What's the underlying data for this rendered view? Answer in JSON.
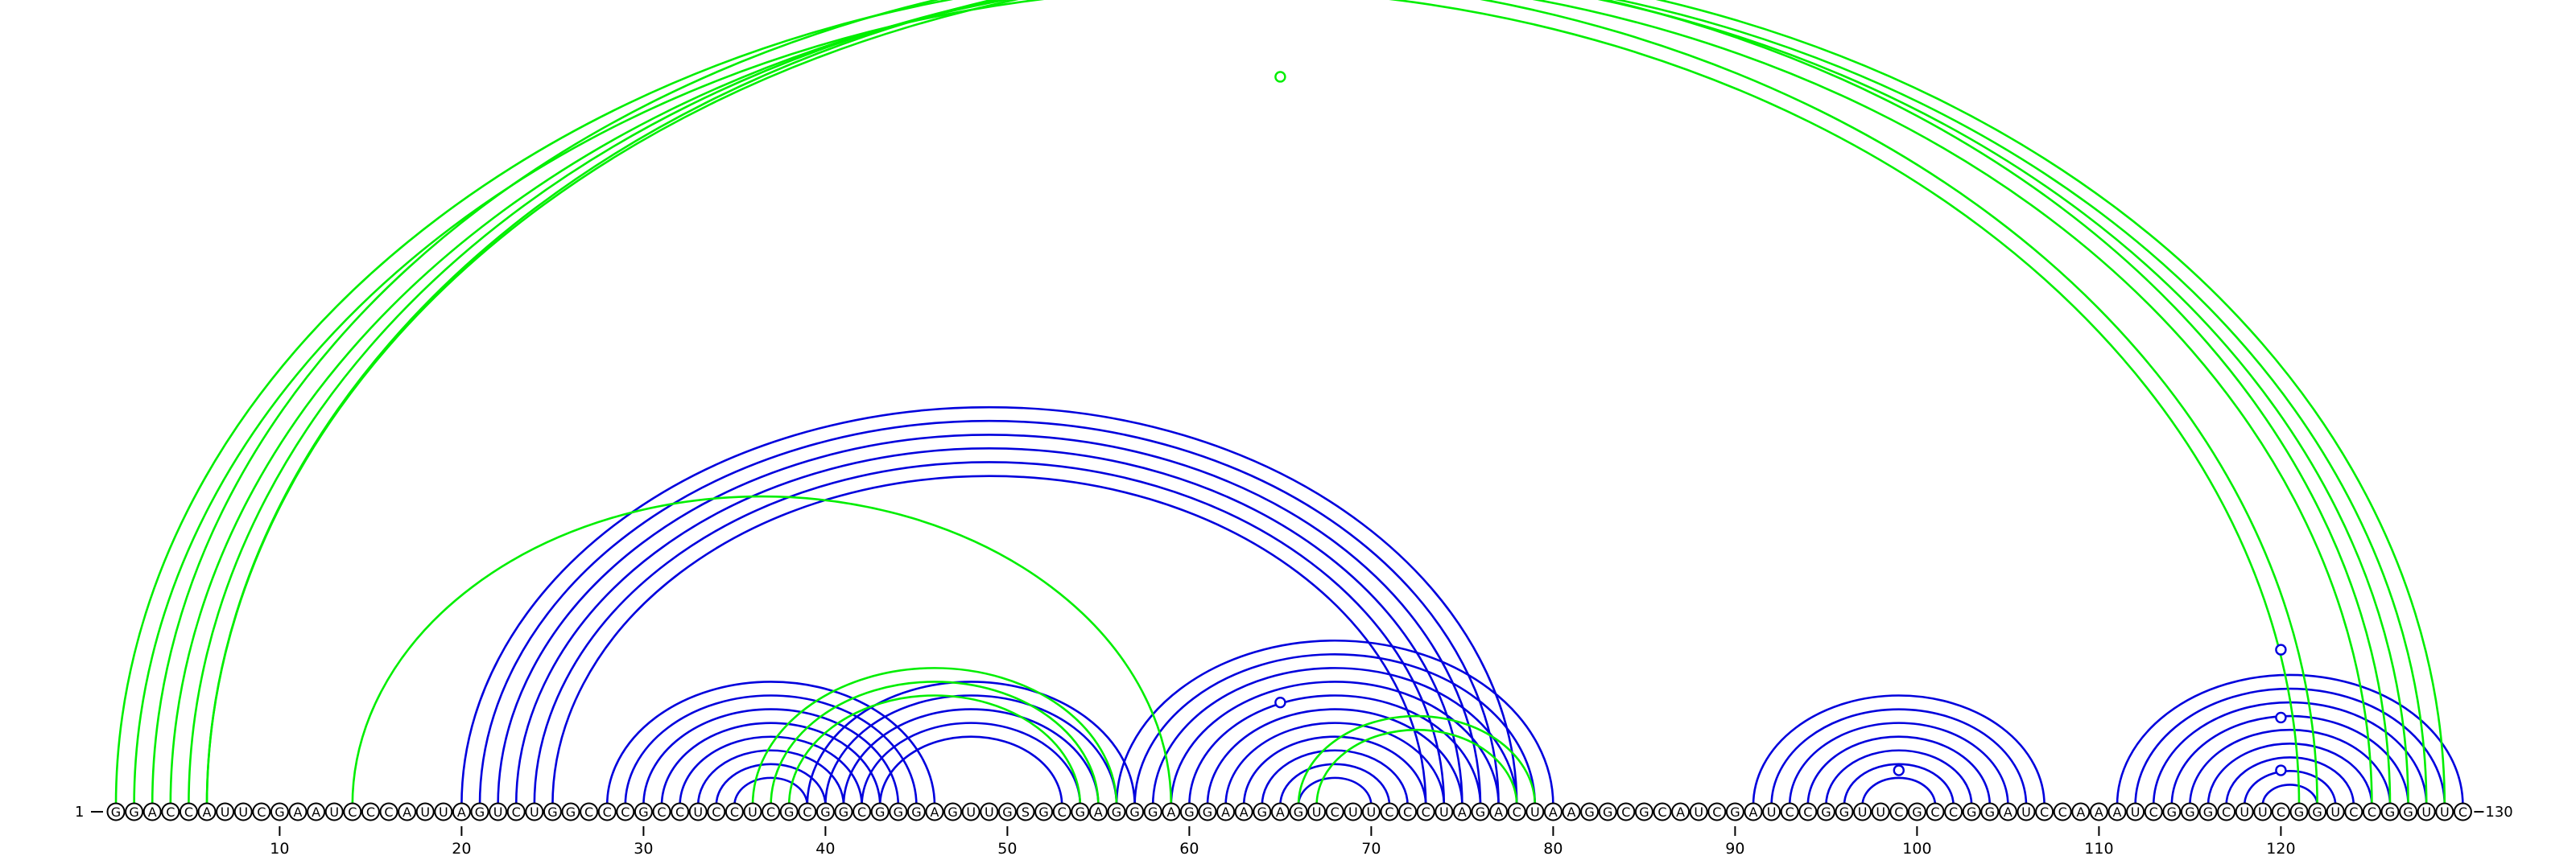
{
  "diagram": {
    "type": "rna-arc-diagram",
    "sequence": "GGACCAUUCGAAUCCCAUUAGUCUGGCCCGCCUCCUCGCGGCGGGAGUUGSGCGAGGGAGGAAGAGUCUUCCCUAGACUAAGGCGCAUCGAUCCGGUUCGCCGGAUCCAAAUCGGGCUUCGGUCCGGUUC",
    "start_label": "1",
    "end_label": "130",
    "tick_positions": [
      10,
      20,
      30,
      40,
      50,
      60,
      70,
      80,
      90,
      100,
      110,
      120
    ],
    "tick_labels": [
      "10",
      "20",
      "30",
      "40",
      "50",
      "60",
      "70",
      "80",
      "90",
      "100",
      "110",
      "120"
    ],
    "colors": {
      "top_pairs": "#00ee00",
      "bottom_pairs": "#0000dd"
    },
    "green_pairs": [
      [
        1,
        122
      ],
      [
        2,
        121
      ],
      [
        3,
        126
      ],
      [
        4,
        125
      ],
      [
        5,
        127
      ],
      [
        6,
        128
      ],
      [
        6,
        129
      ],
      [
        14,
        59
      ],
      [
        36,
        56
      ],
      [
        37,
        55
      ],
      [
        38,
        54
      ],
      [
        66,
        79
      ],
      [
        67,
        78
      ]
    ],
    "blue_pairs": [
      [
        20,
        78
      ],
      [
        21,
        77
      ],
      [
        22,
        76
      ],
      [
        23,
        75
      ],
      [
        24,
        74
      ],
      [
        25,
        73
      ],
      [
        28,
        46
      ],
      [
        29,
        45
      ],
      [
        30,
        44
      ],
      [
        31,
        43
      ],
      [
        32,
        42
      ],
      [
        33,
        41
      ],
      [
        34,
        40
      ],
      [
        35,
        39
      ],
      [
        39,
        57
      ],
      [
        40,
        56
      ],
      [
        41,
        55
      ],
      [
        42,
        54
      ],
      [
        43,
        53
      ],
      [
        56,
        80
      ],
      [
        57,
        79
      ],
      [
        58,
        78
      ],
      [
        59,
        77
      ],
      [
        60,
        76
      ],
      [
        61,
        75
      ],
      [
        62,
        74
      ],
      [
        63,
        73
      ],
      [
        64,
        72
      ],
      [
        65,
        71
      ],
      [
        66,
        70
      ],
      [
        91,
        107
      ],
      [
        92,
        106
      ],
      [
        93,
        105
      ],
      [
        94,
        104
      ],
      [
        95,
        103
      ],
      [
        96,
        102
      ],
      [
        97,
        101
      ],
      [
        111,
        130
      ],
      [
        112,
        129
      ],
      [
        113,
        128
      ],
      [
        114,
        127
      ],
      [
        115,
        126
      ],
      [
        116,
        125
      ],
      [
        117,
        124
      ],
      [
        118,
        123
      ],
      [
        119,
        122
      ]
    ],
    "markers": [
      {
        "color_key": "top_pairs",
        "at": 65,
        "height": 0.96
      },
      {
        "color_key": "bottom_pairs",
        "at": 65,
        "height": 0.13
      },
      {
        "color_key": "bottom_pairs",
        "at": 99,
        "height": 0.04
      },
      {
        "color_key": "bottom_pairs",
        "at": 120,
        "height": 0.2
      },
      {
        "color_key": "bottom_pairs",
        "at": 120,
        "height": 0.11
      },
      {
        "color_key": "bottom_pairs",
        "at": 120,
        "height": 0.04
      }
    ]
  }
}
